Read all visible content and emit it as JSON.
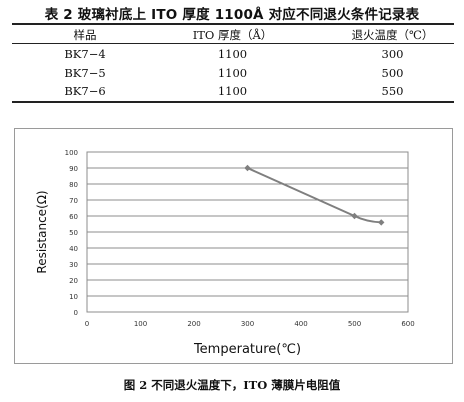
{
  "table": {
    "title": "表 2 玻璃衬底上 ITO 厚度 1100Å 对应不同退火条件记录表",
    "headers": [
      "样品",
      "ITO 厚度（Å）",
      "退火温度（℃）"
    ],
    "rows": [
      [
        "BK7−4",
        "1100",
        "300"
      ],
      [
        "BK7−5",
        "1100",
        "500"
      ],
      [
        "BK7−6",
        "1100",
        "550"
      ]
    ]
  },
  "chart_data": {
    "type": "line",
    "title": "",
    "xlabel": "Temperature(℃)",
    "ylabel": "Resistance(Ω)",
    "xlim": [
      0,
      600
    ],
    "ylim": [
      0,
      100
    ],
    "xticks": [
      0,
      100,
      200,
      300,
      400,
      500,
      600
    ],
    "yticks": [
      0,
      10,
      20,
      30,
      40,
      50,
      60,
      70,
      80,
      90,
      100
    ],
    "grid": "horizontal",
    "legend": "none",
    "series": [
      {
        "color": "#7f7f7f",
        "x": [
          300,
          500,
          550
        ],
        "y": [
          90,
          60,
          56
        ]
      }
    ]
  },
  "caption": "图 2  不同退火温度下，ITO 薄膜片电阻值"
}
